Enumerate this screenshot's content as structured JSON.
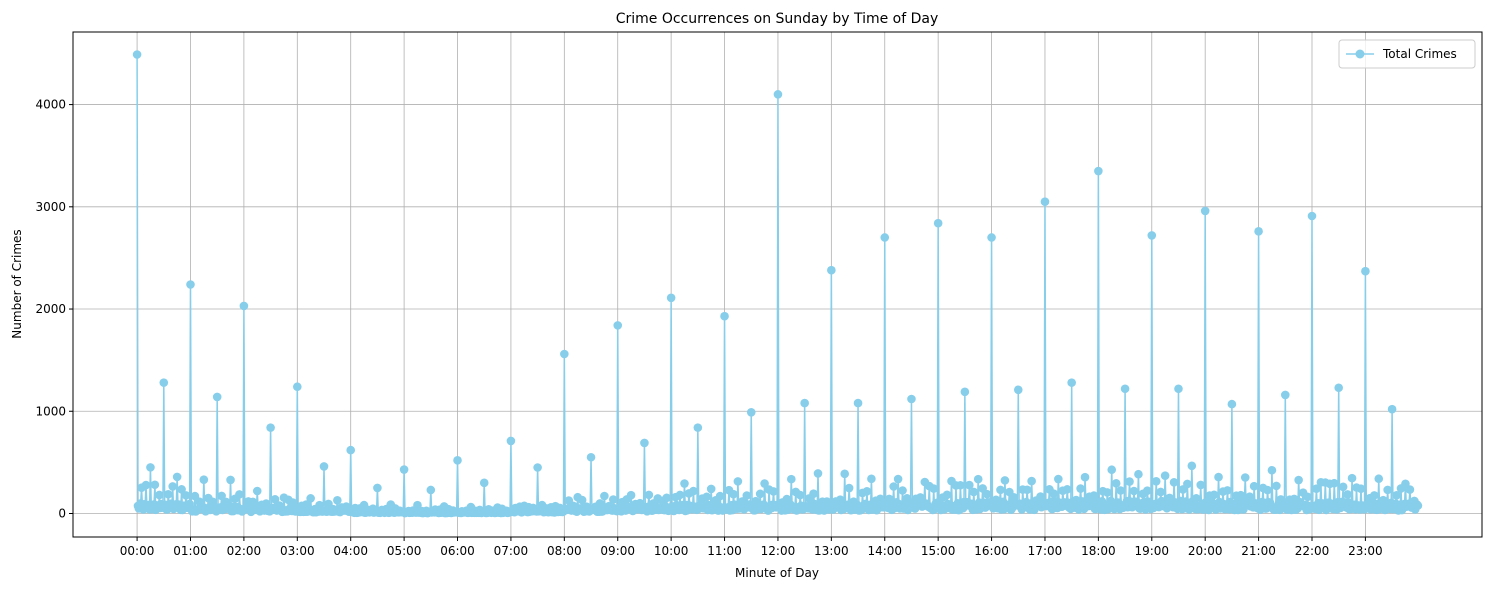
{
  "chart_data": {
    "type": "line",
    "title": "Crime Occurrences on Sunday by Time of Day",
    "xlabel": "Minute of Day",
    "ylabel": "Number of Crimes",
    "xlim": [
      -72,
      1511
    ],
    "ylim": [
      -230,
      4710
    ],
    "xticks": [
      {
        "value": 0,
        "label": "00:00"
      },
      {
        "value": 60,
        "label": "01:00"
      },
      {
        "value": 120,
        "label": "02:00"
      },
      {
        "value": 180,
        "label": "03:00"
      },
      {
        "value": 240,
        "label": "04:00"
      },
      {
        "value": 300,
        "label": "05:00"
      },
      {
        "value": 360,
        "label": "06:00"
      },
      {
        "value": 420,
        "label": "07:00"
      },
      {
        "value": 480,
        "label": "08:00"
      },
      {
        "value": 540,
        "label": "09:00"
      },
      {
        "value": 600,
        "label": "10:00"
      },
      {
        "value": 660,
        "label": "11:00"
      },
      {
        "value": 720,
        "label": "12:00"
      },
      {
        "value": 780,
        "label": "13:00"
      },
      {
        "value": 840,
        "label": "14:00"
      },
      {
        "value": 900,
        "label": "15:00"
      },
      {
        "value": 960,
        "label": "16:00"
      },
      {
        "value": 1020,
        "label": "17:00"
      },
      {
        "value": 1080,
        "label": "18:00"
      },
      {
        "value": 1140,
        "label": "19:00"
      },
      {
        "value": 1200,
        "label": "20:00"
      },
      {
        "value": 1260,
        "label": "21:00"
      },
      {
        "value": 1320,
        "label": "22:00"
      },
      {
        "value": 1380,
        "label": "23:00"
      }
    ],
    "yticks": [
      {
        "value": 0,
        "label": "0"
      },
      {
        "value": 1000,
        "label": "1000"
      },
      {
        "value": 2000,
        "label": "2000"
      },
      {
        "value": 3000,
        "label": "3000"
      },
      {
        "value": 4000,
        "label": "4000"
      }
    ],
    "grid": true,
    "legend_position": "top-right",
    "series": [
      {
        "name": "Total Crimes",
        "color": "#87CEEB",
        "x_start": 0,
        "x_step": 1,
        "hour_values": [
          4490,
          2240,
          2030,
          1240,
          620,
          430,
          520,
          710,
          1560,
          1840,
          2110,
          1930,
          4100,
          2380,
          2700,
          2840,
          2700,
          3050,
          3350,
          2720,
          2960,
          2760,
          2910,
          2370
        ],
        "half_hour_values": [
          1280,
          1140,
          840,
          460,
          250,
          230,
          300,
          450,
          550,
          690,
          840,
          990,
          1080,
          1080,
          1120,
          1190,
          1210,
          1280,
          1220,
          1220,
          1070,
          1160,
          1230,
          1020
        ],
        "quarter_hour_values": [
          440,
          380,
          320,
          310,
          210,
          160,
          140,
          150,
          90,
          80,
          80,
          70,
          60,
          60,
          70,
          70,
          140,
          150,
          200,
          160,
          260,
          240,
          330,
          320,
          380,
          390,
          380,
          360,
          360,
          360,
          350,
          360,
          320,
          330,
          350,
          350,
          400,
          400,
          410,
          410,
          380,
          380,
          390,
          380,
          340,
          350,
          300,
          300,
          300,
          310
        ],
        "five_min_base": [
          220,
          150,
          110,
          70,
          40,
          30,
          35,
          60,
          110,
          130,
          160,
          170,
          180,
          190,
          200,
          210,
          210,
          220,
          230,
          230,
          220,
          220,
          220,
          200
        ],
        "minute_base": [
          70,
          50,
          40,
          25,
          15,
          10,
          12,
          25,
          40,
          50,
          60,
          65,
          70,
          75,
          80,
          80,
          85,
          90,
          90,
          90,
          85,
          85,
          80,
          75
        ]
      }
    ]
  }
}
